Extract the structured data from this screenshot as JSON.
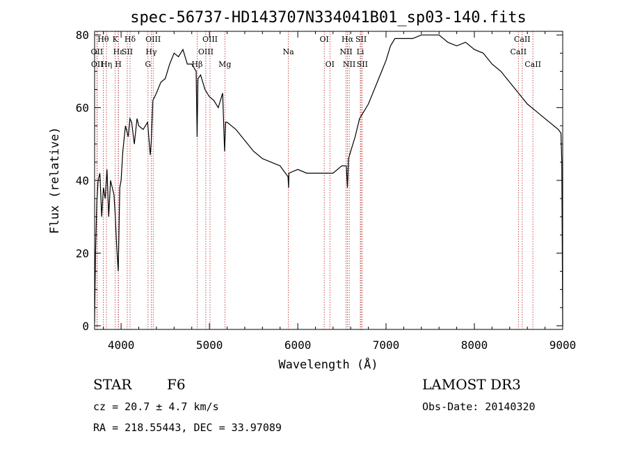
{
  "chart_data": {
    "type": "line",
    "title": "spec-56737-HD143707N334041B01_sp03-140.fits",
    "xlabel": "Wavelength (Å)",
    "ylabel": "Flux (relative)",
    "xlim": [
      3700,
      9000
    ],
    "ylim": [
      -1,
      81
    ],
    "xticks": [
      4000,
      5000,
      6000,
      7000,
      8000,
      9000
    ],
    "yticks": [
      0,
      20,
      40,
      60,
      80
    ],
    "grid": false,
    "line_color": "#000000",
    "marker_color": "#b22222",
    "spectrum": {
      "x": [
        3700,
        3710,
        3725,
        3740,
        3760,
        3780,
        3800,
        3820,
        3840,
        3860,
        3880,
        3900,
        3920,
        3935,
        3950,
        3968,
        3985,
        4000,
        4020,
        4050,
        4080,
        4100,
        4120,
        4150,
        4180,
        4200,
        4250,
        4300,
        4330,
        4340,
        4360,
        4400,
        4450,
        4500,
        4550,
        4600,
        4650,
        4700,
        4750,
        4800,
        4850,
        4861,
        4870,
        4900,
        4950,
        5000,
        5050,
        5100,
        5150,
        5172,
        5184,
        5200,
        5250,
        5300,
        5400,
        5500,
        5600,
        5700,
        5800,
        5890,
        5896,
        5900,
        6000,
        6100,
        6200,
        6300,
        6400,
        6500,
        6550,
        6563,
        6575,
        6600,
        6650,
        6700,
        6750,
        6800,
        6850,
        6900,
        6950,
        7000,
        7050,
        7100,
        7200,
        7300,
        7400,
        7500,
        7600,
        7700,
        7800,
        7900,
        8000,
        8100,
        8200,
        8300,
        8400,
        8500,
        8600,
        8700,
        8800,
        8900,
        8950,
        8980,
        8990,
        9000
      ],
      "y": [
        1,
        20,
        34,
        40,
        42,
        30,
        38,
        35,
        43,
        30,
        40,
        38,
        36,
        30,
        22,
        15,
        38,
        40,
        48,
        55,
        52,
        57,
        56,
        50,
        57,
        55,
        54,
        56,
        47,
        50,
        62,
        64,
        67,
        68,
        72,
        75,
        74,
        76,
        72,
        72,
        70,
        52,
        68,
        69,
        65,
        63,
        62,
        60,
        64,
        48,
        56,
        56,
        55,
        54,
        51,
        48,
        46,
        45,
        44,
        41,
        38,
        42,
        43,
        42,
        42,
        42,
        42,
        44,
        44,
        38,
        46,
        48,
        52,
        57,
        59,
        61,
        64,
        67,
        70,
        73,
        77,
        79,
        79,
        79,
        80,
        80,
        80,
        78,
        77,
        78,
        76,
        75,
        72,
        70,
        67,
        64,
        61,
        59,
        57,
        55,
        54,
        53,
        45,
        0
      ]
    },
    "lines": [
      {
        "label": "Hθ",
        "wavelength": 3798,
        "row": 1
      },
      {
        "label": "OII",
        "wavelength": 3727,
        "row": 2
      },
      {
        "label": "OII",
        "wavelength": 3729,
        "row": 3
      },
      {
        "label": "Hη",
        "wavelength": 3835,
        "row": 3
      },
      {
        "label": "K",
        "wavelength": 3934,
        "row": 1
      },
      {
        "label": "Hε",
        "wavelength": 3970,
        "row": 2
      },
      {
        "label": "H",
        "wavelength": 3968,
        "row": 3
      },
      {
        "label": "Hδ",
        "wavelength": 4102,
        "row": 1
      },
      {
        "label": "SII",
        "wavelength": 4070,
        "row": 2
      },
      {
        "label": "OIII",
        "wavelength": 4363,
        "row": 1
      },
      {
        "label": "Hγ",
        "wavelength": 4341,
        "row": 2
      },
      {
        "label": "G",
        "wavelength": 4305,
        "row": 3
      },
      {
        "label": "OIII",
        "wavelength": 5007,
        "row": 1
      },
      {
        "label": "OIII",
        "wavelength": 4959,
        "row": 2
      },
      {
        "label": "Hβ",
        "wavelength": 4861,
        "row": 3
      },
      {
        "label": "Mg",
        "wavelength": 5175,
        "row": 3
      },
      {
        "label": "Na",
        "wavelength": 5894,
        "row": 2
      },
      {
        "label": "OI",
        "wavelength": 6300,
        "row": 1
      },
      {
        "label": "OI",
        "wavelength": 6364,
        "row": 3
      },
      {
        "label": "Hα",
        "wavelength": 6563,
        "row": 1
      },
      {
        "label": "SII",
        "wavelength": 6717,
        "row": 1
      },
      {
        "label": "NII",
        "wavelength": 6548,
        "row": 2
      },
      {
        "label": "NII",
        "wavelength": 6583,
        "row": 3
      },
      {
        "label": "Li",
        "wavelength": 6708,
        "row": 2
      },
      {
        "label": "SII",
        "wavelength": 6731,
        "row": 3
      },
      {
        "label": "CaII",
        "wavelength": 8542,
        "row": 1
      },
      {
        "label": "CaII",
        "wavelength": 8498,
        "row": 2
      },
      {
        "label": "CaII",
        "wavelength": 8662,
        "row": 3
      }
    ]
  },
  "info": {
    "class": "STAR",
    "subclass": "F6",
    "cz": "cz = 20.7 ± 4.7 km/s",
    "coords": "RA = 218.55443, DEC =  33.97089",
    "survey": "LAMOST DR3",
    "obs_date": "Obs-Date: 20140320"
  }
}
